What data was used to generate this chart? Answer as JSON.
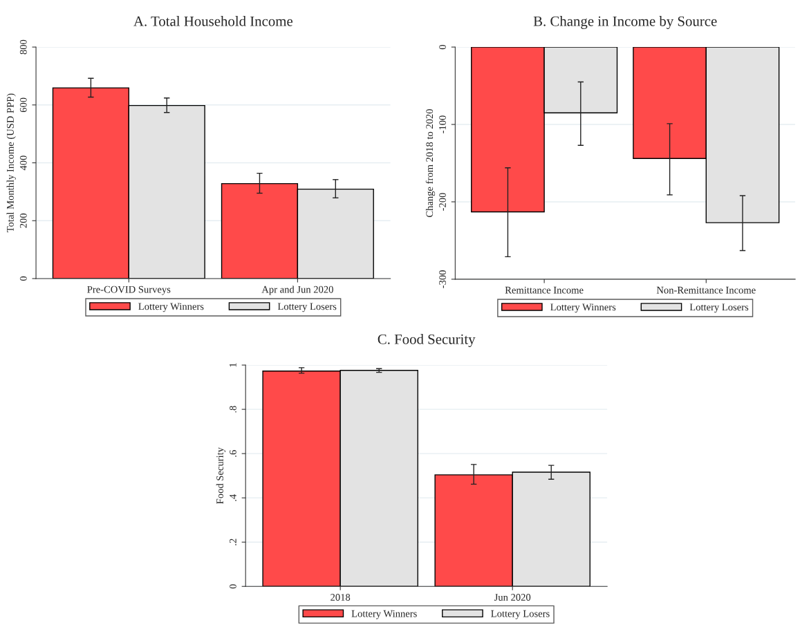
{
  "chart_data": [
    {
      "type": "bar",
      "title": "A. Total Household Income",
      "ylabel": "Total Monthly Income (USD PPP)",
      "categories": [
        "Pre-COVID Surveys",
        "Apr and Jun 2020"
      ],
      "series": [
        {
          "name": "Lottery Winners",
          "color": "#ff4a4a",
          "values": [
            659,
            328
          ],
          "errors": [
            [
              627,
              692
            ],
            [
              295,
              364
            ]
          ]
        },
        {
          "name": "Lottery Losers",
          "color": "#e3e3e3",
          "values": [
            598,
            309
          ],
          "errors": [
            [
              574,
              624
            ],
            [
              279,
              342
            ]
          ]
        }
      ],
      "ylim": [
        0,
        800
      ],
      "yticks": [
        0,
        200,
        400,
        600,
        800
      ],
      "grid": "y",
      "legend": "bottom"
    },
    {
      "type": "bar",
      "title": "B. Change in Income by Source",
      "ylabel": "Change from 2018 to 2020",
      "categories": [
        "Remittance Income",
        "Non-Remittance Income"
      ],
      "series": [
        {
          "name": "Lottery Winners",
          "color": "#ff4a4a",
          "values": [
            -213,
            -144
          ],
          "errors": [
            [
              -271,
              -156
            ],
            [
              -191,
              -99
            ]
          ]
        },
        {
          "name": "Lottery Losers",
          "color": "#e3e3e3",
          "values": [
            -85,
            -227
          ],
          "errors": [
            [
              -127,
              -45
            ],
            [
              -263,
              -192
            ]
          ]
        }
      ],
      "ylim": [
        -300,
        0
      ],
      "yticks": [
        -300,
        -200,
        -100,
        0
      ],
      "grid": "y",
      "legend": "bottom"
    },
    {
      "type": "bar",
      "title": "C. Food Security",
      "ylabel": "Food Security",
      "categories": [
        "2018",
        "Jun 2020"
      ],
      "series": [
        {
          "name": "Lottery Winners",
          "color": "#ff4a4a",
          "values": [
            0.973,
            0.504
          ],
          "errors": [
            [
              0.963,
              0.988
            ],
            [
              0.462,
              0.551
            ]
          ]
        },
        {
          "name": "Lottery Losers",
          "color": "#e3e3e3",
          "values": [
            0.976,
            0.516
          ],
          "errors": [
            [
              0.967,
              0.984
            ],
            [
              0.484,
              0.547
            ]
          ]
        }
      ],
      "ylim": [
        0,
        1
      ],
      "yticks": [
        0,
        {
          "value": 0.2,
          "label": ".2"
        },
        {
          "value": 0.4,
          "label": ".4"
        },
        {
          "value": 0.6,
          "label": ".6"
        },
        {
          "value": 0.8,
          "label": ".8"
        },
        1
      ],
      "grid": "y",
      "legend": "bottom"
    }
  ]
}
